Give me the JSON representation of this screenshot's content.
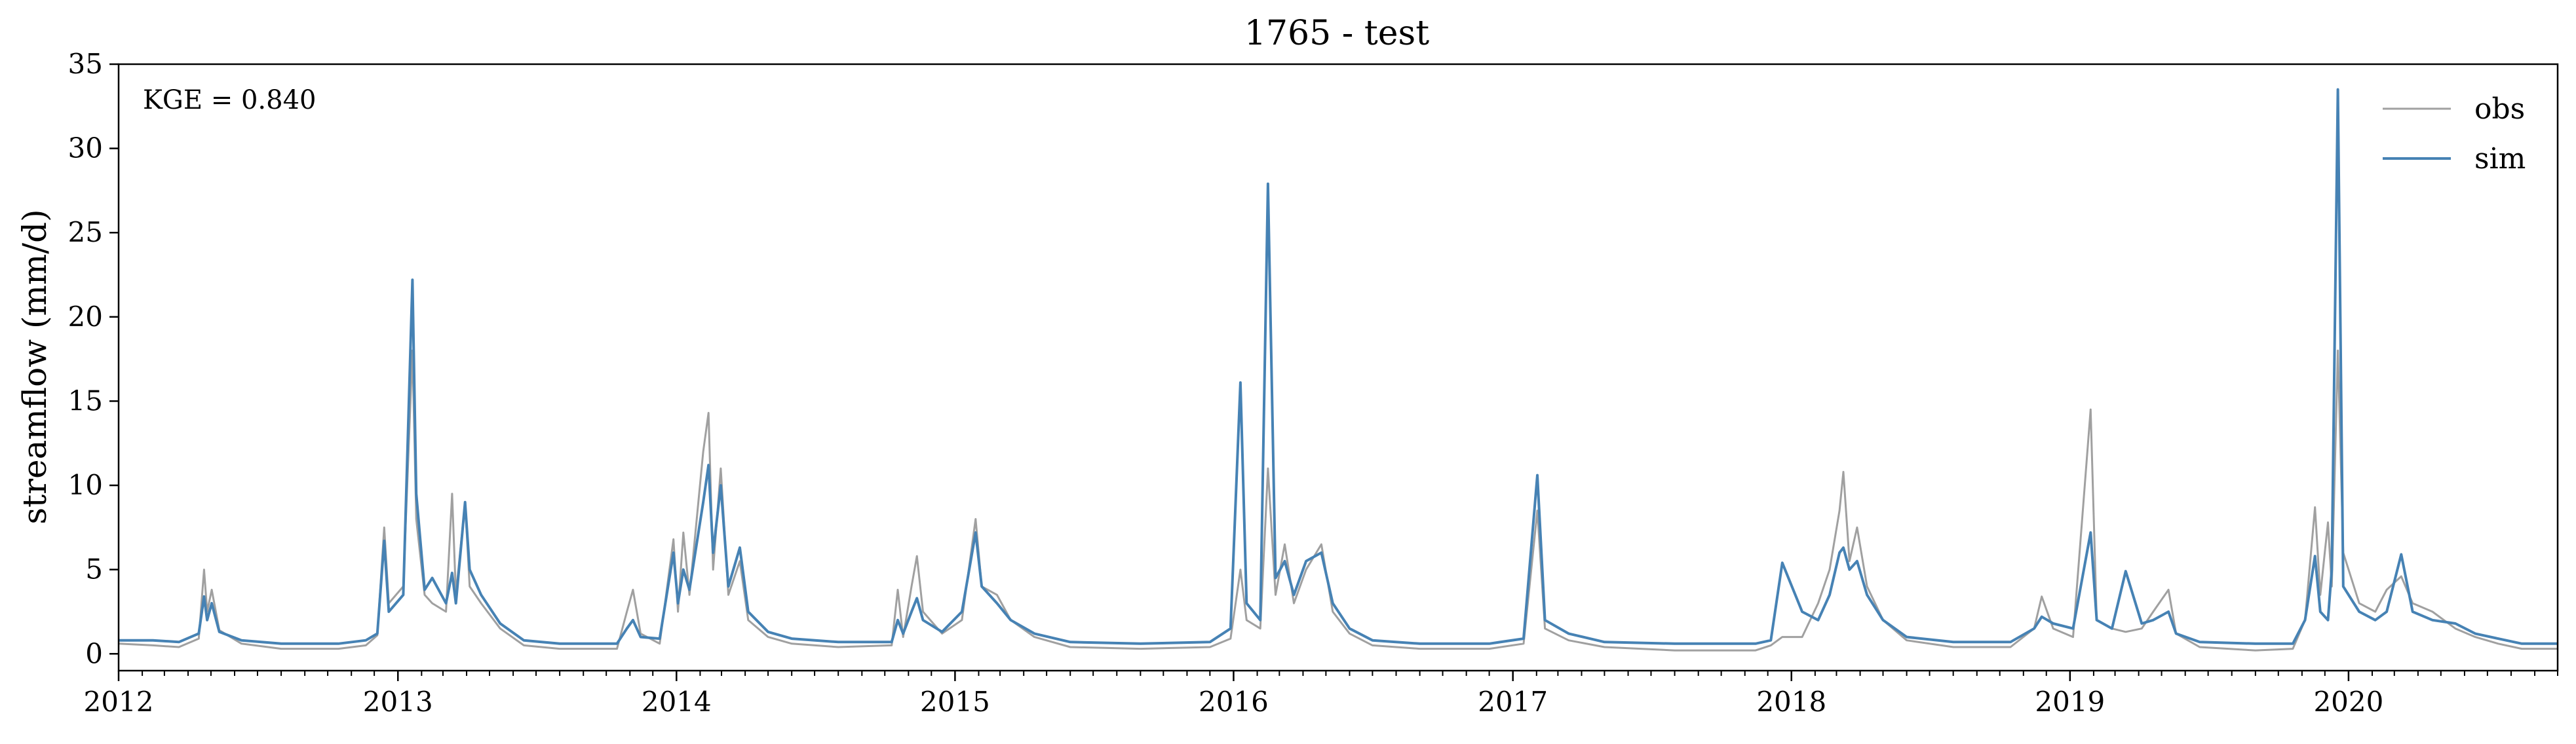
{
  "chart_data": {
    "type": "line",
    "title": "1765 - test",
    "xlabel": "",
    "ylabel": "streamflow (mm/d)",
    "annotation": "KGE = 0.840",
    "legend_position": "top-right",
    "grid": false,
    "x_range": [
      "2012-01-01",
      "2020-10-01"
    ],
    "ylim": [
      -1,
      35
    ],
    "x_ticks": [
      "2012",
      "2013",
      "2014",
      "2015",
      "2016",
      "2017",
      "2018",
      "2019",
      "2020"
    ],
    "y_ticks": [
      "0",
      "5",
      "10",
      "15",
      "20",
      "25",
      "30",
      "35"
    ],
    "series": [
      {
        "name": "obs",
        "color": "#a0a0a0",
        "points": [
          [
            "2012-01-01",
            0.6
          ],
          [
            "2012-02-15",
            0.5
          ],
          [
            "2012-03-20",
            0.4
          ],
          [
            "2012-04-15",
            0.9
          ],
          [
            "2012-04-22",
            5.0
          ],
          [
            "2012-04-26",
            2.5
          ],
          [
            "2012-05-02",
            3.8
          ],
          [
            "2012-05-12",
            1.4
          ],
          [
            "2012-06-10",
            0.6
          ],
          [
            "2012-08-01",
            0.3
          ],
          [
            "2012-10-15",
            0.3
          ],
          [
            "2012-11-20",
            0.5
          ],
          [
            "2012-12-05",
            1.1
          ],
          [
            "2012-12-14",
            7.5
          ],
          [
            "2012-12-20",
            3.0
          ],
          [
            "2013-01-08",
            4.0
          ],
          [
            "2013-01-20",
            18.0
          ],
          [
            "2013-01-25",
            8.0
          ],
          [
            "2013-02-05",
            3.5
          ],
          [
            "2013-02-15",
            3.0
          ],
          [
            "2013-03-05",
            2.5
          ],
          [
            "2013-03-13",
            9.5
          ],
          [
            "2013-03-18",
            3.5
          ],
          [
            "2013-03-30",
            9.0
          ],
          [
            "2013-04-05",
            4.0
          ],
          [
            "2013-04-20",
            3.0
          ],
          [
            "2013-05-15",
            1.5
          ],
          [
            "2013-06-15",
            0.5
          ],
          [
            "2013-08-01",
            0.3
          ],
          [
            "2013-10-15",
            0.3
          ],
          [
            "2013-10-28",
            2.5
          ],
          [
            "2013-11-05",
            3.8
          ],
          [
            "2013-11-15",
            1.2
          ],
          [
            "2013-12-10",
            0.6
          ],
          [
            "2013-12-28",
            6.8
          ],
          [
            "2014-01-03",
            2.5
          ],
          [
            "2014-01-10",
            7.2
          ],
          [
            "2014-01-18",
            3.5
          ],
          [
            "2014-02-05",
            12.0
          ],
          [
            "2014-02-12",
            14.3
          ],
          [
            "2014-02-18",
            5.0
          ],
          [
            "2014-02-28",
            11.0
          ],
          [
            "2014-03-10",
            3.5
          ],
          [
            "2014-03-25",
            5.5
          ],
          [
            "2014-04-05",
            2.0
          ],
          [
            "2014-05-01",
            1.0
          ],
          [
            "2014-06-01",
            0.6
          ],
          [
            "2014-08-01",
            0.4
          ],
          [
            "2014-10-10",
            0.5
          ],
          [
            "2014-10-18",
            3.8
          ],
          [
            "2014-10-25",
            1.0
          ],
          [
            "2014-11-05",
            4.0
          ],
          [
            "2014-11-12",
            5.8
          ],
          [
            "2014-11-20",
            2.5
          ],
          [
            "2014-12-15",
            1.2
          ],
          [
            "2015-01-10",
            2.0
          ],
          [
            "2015-01-28",
            8.0
          ],
          [
            "2015-02-05",
            4.0
          ],
          [
            "2015-02-25",
            3.5
          ],
          [
            "2015-03-15",
            2.0
          ],
          [
            "2015-04-15",
            1.0
          ],
          [
            "2015-06-01",
            0.4
          ],
          [
            "2015-09-01",
            0.3
          ],
          [
            "2015-12-01",
            0.4
          ],
          [
            "2015-12-28",
            0.9
          ],
          [
            "2016-01-10",
            5.0
          ],
          [
            "2016-01-18",
            2.0
          ],
          [
            "2016-02-05",
            1.5
          ],
          [
            "2016-02-15",
            11.0
          ],
          [
            "2016-02-25",
            3.5
          ],
          [
            "2016-03-08",
            6.5
          ],
          [
            "2016-03-20",
            3.0
          ],
          [
            "2016-04-05",
            5.0
          ],
          [
            "2016-04-25",
            6.5
          ],
          [
            "2016-05-10",
            2.5
          ],
          [
            "2016-06-01",
            1.2
          ],
          [
            "2016-07-01",
            0.5
          ],
          [
            "2016-09-01",
            0.3
          ],
          [
            "2016-12-01",
            0.3
          ],
          [
            "2017-01-15",
            0.6
          ],
          [
            "2017-02-02",
            8.5
          ],
          [
            "2017-02-12",
            1.5
          ],
          [
            "2017-03-15",
            0.8
          ],
          [
            "2017-05-01",
            0.4
          ],
          [
            "2017-08-01",
            0.2
          ],
          [
            "2017-11-15",
            0.2
          ],
          [
            "2017-12-05",
            0.5
          ],
          [
            "2017-12-20",
            1.0
          ],
          [
            "2018-01-15",
            1.0
          ],
          [
            "2018-02-05",
            3.0
          ],
          [
            "2018-02-20",
            5.0
          ],
          [
            "2018-03-05",
            8.5
          ],
          [
            "2018-03-10",
            10.8
          ],
          [
            "2018-03-18",
            5.5
          ],
          [
            "2018-03-28",
            7.5
          ],
          [
            "2018-04-10",
            4.0
          ],
          [
            "2018-05-01",
            2.0
          ],
          [
            "2018-06-01",
            0.8
          ],
          [
            "2018-08-01",
            0.4
          ],
          [
            "2018-10-15",
            0.4
          ],
          [
            "2018-11-15",
            1.5
          ],
          [
            "2018-11-25",
            3.4
          ],
          [
            "2018-12-10",
            1.5
          ],
          [
            "2019-01-05",
            1.0
          ],
          [
            "2019-01-28",
            14.5
          ],
          [
            "2019-02-05",
            2.0
          ],
          [
            "2019-02-25",
            1.5
          ],
          [
            "2019-03-15",
            1.3
          ],
          [
            "2019-04-05",
            1.5
          ],
          [
            "2019-04-20",
            2.5
          ],
          [
            "2019-05-10",
            3.8
          ],
          [
            "2019-05-20",
            1.2
          ],
          [
            "2019-06-20",
            0.4
          ],
          [
            "2019-09-01",
            0.2
          ],
          [
            "2019-10-20",
            0.3
          ],
          [
            "2019-11-05",
            2.0
          ],
          [
            "2019-11-18",
            8.7
          ],
          [
            "2019-11-25",
            3.5
          ],
          [
            "2019-12-05",
            7.8
          ],
          [
            "2019-12-10",
            4.0
          ],
          [
            "2019-12-18",
            18.0
          ],
          [
            "2019-12-25",
            6.0
          ],
          [
            "2020-01-15",
            3.0
          ],
          [
            "2020-02-05",
            2.5
          ],
          [
            "2020-02-20",
            3.8
          ],
          [
            "2020-03-10",
            4.6
          ],
          [
            "2020-03-25",
            3.0
          ],
          [
            "2020-04-20",
            2.5
          ],
          [
            "2020-05-20",
            1.5
          ],
          [
            "2020-06-15",
            1.0
          ],
          [
            "2020-07-15",
            0.6
          ],
          [
            "2020-08-15",
            0.3
          ],
          [
            "2020-10-01",
            0.3
          ]
        ]
      },
      {
        "name": "sim",
        "color": "#4682b4",
        "points": [
          [
            "2012-01-01",
            0.8
          ],
          [
            "2012-02-15",
            0.8
          ],
          [
            "2012-03-20",
            0.7
          ],
          [
            "2012-04-15",
            1.2
          ],
          [
            "2012-04-22",
            3.4
          ],
          [
            "2012-04-26",
            2.0
          ],
          [
            "2012-05-02",
            3.0
          ],
          [
            "2012-05-12",
            1.3
          ],
          [
            "2012-06-10",
            0.8
          ],
          [
            "2012-08-01",
            0.6
          ],
          [
            "2012-10-15",
            0.6
          ],
          [
            "2012-11-20",
            0.8
          ],
          [
            "2012-12-05",
            1.2
          ],
          [
            "2012-12-14",
            6.7
          ],
          [
            "2012-12-20",
            2.5
          ],
          [
            "2013-01-08",
            3.5
          ],
          [
            "2013-01-20",
            22.2
          ],
          [
            "2013-01-25",
            9.5
          ],
          [
            "2013-02-05",
            3.8
          ],
          [
            "2013-02-15",
            4.5
          ],
          [
            "2013-03-05",
            3.0
          ],
          [
            "2013-03-13",
            4.8
          ],
          [
            "2013-03-18",
            3.0
          ],
          [
            "2013-03-30",
            9.0
          ],
          [
            "2013-04-05",
            5.0
          ],
          [
            "2013-04-20",
            3.5
          ],
          [
            "2013-05-15",
            1.8
          ],
          [
            "2013-06-15",
            0.8
          ],
          [
            "2013-08-01",
            0.6
          ],
          [
            "2013-10-15",
            0.6
          ],
          [
            "2013-10-28",
            1.5
          ],
          [
            "2013-11-05",
            2.0
          ],
          [
            "2013-11-15",
            1.0
          ],
          [
            "2013-12-10",
            0.9
          ],
          [
            "2013-12-28",
            6.0
          ],
          [
            "2014-01-03",
            3.0
          ],
          [
            "2014-01-10",
            5.0
          ],
          [
            "2014-01-18",
            3.8
          ],
          [
            "2014-02-05",
            9.0
          ],
          [
            "2014-02-12",
            11.2
          ],
          [
            "2014-02-18",
            6.0
          ],
          [
            "2014-02-28",
            10.0
          ],
          [
            "2014-03-10",
            4.0
          ],
          [
            "2014-03-25",
            6.3
          ],
          [
            "2014-04-05",
            2.5
          ],
          [
            "2014-05-01",
            1.3
          ],
          [
            "2014-06-01",
            0.9
          ],
          [
            "2014-08-01",
            0.7
          ],
          [
            "2014-10-10",
            0.7
          ],
          [
            "2014-10-18",
            2.0
          ],
          [
            "2014-10-25",
            1.2
          ],
          [
            "2014-11-05",
            2.5
          ],
          [
            "2014-11-12",
            3.3
          ],
          [
            "2014-11-20",
            2.0
          ],
          [
            "2014-12-15",
            1.3
          ],
          [
            "2015-01-10",
            2.5
          ],
          [
            "2015-01-28",
            7.2
          ],
          [
            "2015-02-05",
            4.0
          ],
          [
            "2015-02-25",
            3.0
          ],
          [
            "2015-03-15",
            2.0
          ],
          [
            "2015-04-15",
            1.2
          ],
          [
            "2015-06-01",
            0.7
          ],
          [
            "2015-09-01",
            0.6
          ],
          [
            "2015-12-01",
            0.7
          ],
          [
            "2015-12-28",
            1.5
          ],
          [
            "2016-01-10",
            16.1
          ],
          [
            "2016-01-18",
            3.0
          ],
          [
            "2016-02-05",
            2.0
          ],
          [
            "2016-02-15",
            27.9
          ],
          [
            "2016-02-25",
            4.5
          ],
          [
            "2016-03-08",
            5.5
          ],
          [
            "2016-03-20",
            3.5
          ],
          [
            "2016-04-05",
            5.5
          ],
          [
            "2016-04-25",
            6.0
          ],
          [
            "2016-05-10",
            3.0
          ],
          [
            "2016-06-01",
            1.5
          ],
          [
            "2016-07-01",
            0.8
          ],
          [
            "2016-09-01",
            0.6
          ],
          [
            "2016-12-01",
            0.6
          ],
          [
            "2017-01-15",
            0.9
          ],
          [
            "2017-02-02",
            10.6
          ],
          [
            "2017-02-12",
            2.0
          ],
          [
            "2017-03-15",
            1.2
          ],
          [
            "2017-05-01",
            0.7
          ],
          [
            "2017-08-01",
            0.6
          ],
          [
            "2017-11-15",
            0.6
          ],
          [
            "2017-12-05",
            0.8
          ],
          [
            "2017-12-20",
            5.4
          ],
          [
            "2018-01-15",
            2.5
          ],
          [
            "2018-02-05",
            2.0
          ],
          [
            "2018-02-20",
            3.5
          ],
          [
            "2018-03-05",
            6.0
          ],
          [
            "2018-03-10",
            6.3
          ],
          [
            "2018-03-18",
            5.0
          ],
          [
            "2018-03-28",
            5.5
          ],
          [
            "2018-04-10",
            3.5
          ],
          [
            "2018-05-01",
            2.0
          ],
          [
            "2018-06-01",
            1.0
          ],
          [
            "2018-08-01",
            0.7
          ],
          [
            "2018-10-15",
            0.7
          ],
          [
            "2018-11-15",
            1.5
          ],
          [
            "2018-11-25",
            2.2
          ],
          [
            "2018-12-10",
            1.8
          ],
          [
            "2019-01-05",
            1.5
          ],
          [
            "2019-01-28",
            7.2
          ],
          [
            "2019-02-05",
            2.0
          ],
          [
            "2019-02-25",
            1.5
          ],
          [
            "2019-03-15",
            4.9
          ],
          [
            "2019-04-05",
            1.8
          ],
          [
            "2019-04-20",
            2.0
          ],
          [
            "2019-05-10",
            2.5
          ],
          [
            "2019-05-20",
            1.2
          ],
          [
            "2019-06-20",
            0.7
          ],
          [
            "2019-09-01",
            0.6
          ],
          [
            "2019-10-20",
            0.6
          ],
          [
            "2019-11-05",
            2.0
          ],
          [
            "2019-11-18",
            5.8
          ],
          [
            "2019-11-25",
            2.5
          ],
          [
            "2019-12-05",
            2.0
          ],
          [
            "2019-12-10",
            5.0
          ],
          [
            "2019-12-18",
            33.5
          ],
          [
            "2019-12-25",
            4.0
          ],
          [
            "2020-01-15",
            2.5
          ],
          [
            "2020-02-05",
            2.0
          ],
          [
            "2020-02-20",
            2.5
          ],
          [
            "2020-03-10",
            5.9
          ],
          [
            "2020-03-25",
            2.5
          ],
          [
            "2020-04-20",
            2.0
          ],
          [
            "2020-05-20",
            1.8
          ],
          [
            "2020-06-15",
            1.2
          ],
          [
            "2020-07-15",
            0.9
          ],
          [
            "2020-08-15",
            0.6
          ],
          [
            "2020-10-01",
            0.6
          ]
        ]
      }
    ]
  }
}
